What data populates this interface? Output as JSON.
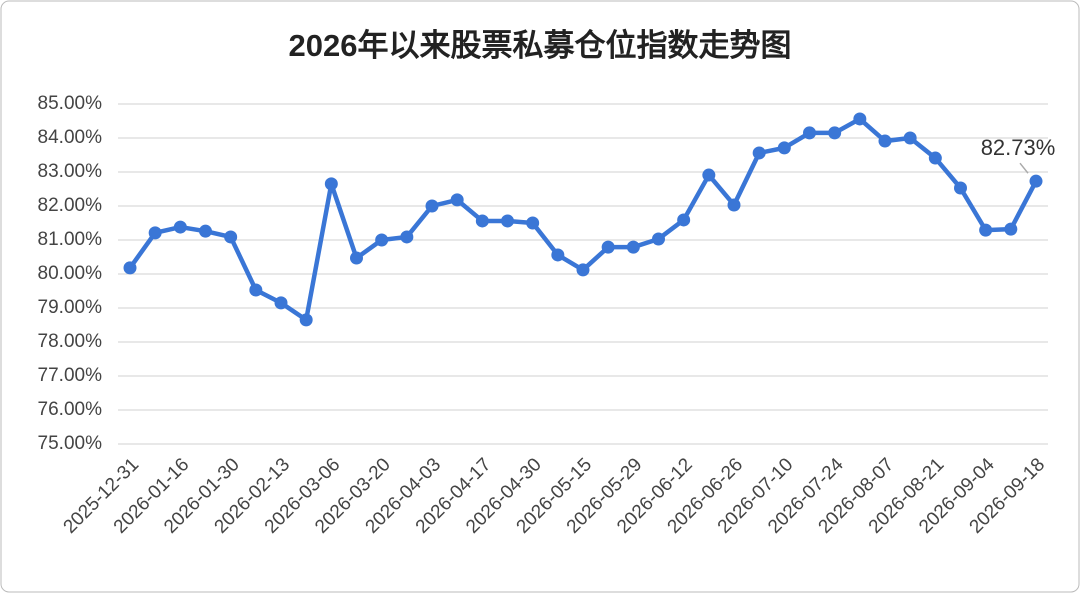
{
  "chart_data": {
    "type": "line",
    "title": "2026年以来股票私募仓位指数走势图",
    "categories": [
      "2025-12-31",
      null,
      "2026-01-16",
      null,
      "2026-01-30",
      null,
      "2026-02-13",
      null,
      "2026-03-06",
      null,
      "2026-03-20",
      null,
      "2026-04-03",
      null,
      "2026-04-17",
      null,
      "2026-04-30",
      null,
      "2026-05-15",
      null,
      "2026-05-29",
      null,
      "2026-06-12",
      null,
      "2026-06-26",
      null,
      "2026-07-10",
      null,
      "2026-07-24",
      null,
      "2026-08-07",
      null,
      "2026-08-21",
      null,
      "2026-09-04",
      null,
      "2026-09-18"
    ],
    "series": [
      {
        "color": "#3a76d6",
        "values": [
          80.18,
          81.21,
          81.38,
          81.26,
          81.09,
          79.53,
          79.15,
          78.65,
          82.65,
          80.47,
          81.0,
          81.09,
          82.0,
          82.18,
          81.56,
          81.56,
          81.5,
          80.56,
          80.12,
          80.79,
          80.79,
          81.03,
          81.59,
          82.91,
          82.03,
          83.56,
          83.71,
          84.15,
          84.15,
          84.56,
          83.91,
          84.0,
          83.41,
          82.53,
          81.29,
          81.32,
          82.73
        ],
        "value_labels": [
          null,
          null,
          null,
          null,
          null,
          null,
          null,
          null,
          null,
          null,
          null,
          null,
          null,
          null,
          null,
          null,
          null,
          null,
          null,
          null,
          null,
          null,
          null,
          null,
          null,
          null,
          null,
          null,
          null,
          null,
          null,
          null,
          null,
          null,
          null,
          null,
          "82.73%"
        ]
      }
    ],
    "ylim": [
      75,
      85
    ],
    "yticks": [
      {
        "value": 75,
        "label": "75.00%"
      },
      {
        "value": 76,
        "label": "76.00%"
      },
      {
        "value": 77,
        "label": "77.00%"
      },
      {
        "value": 78,
        "label": "78.00%"
      },
      {
        "value": 79,
        "label": "79.00%"
      },
      {
        "value": 80,
        "label": "80.00%"
      },
      {
        "value": 81,
        "label": "81.00%"
      },
      {
        "value": 82,
        "label": "82.00%"
      },
      {
        "value": 83,
        "label": "83.00%"
      },
      {
        "value": 84,
        "label": "84.00%"
      },
      {
        "value": 85,
        "label": "85.00%"
      }
    ],
    "grid": true
  }
}
